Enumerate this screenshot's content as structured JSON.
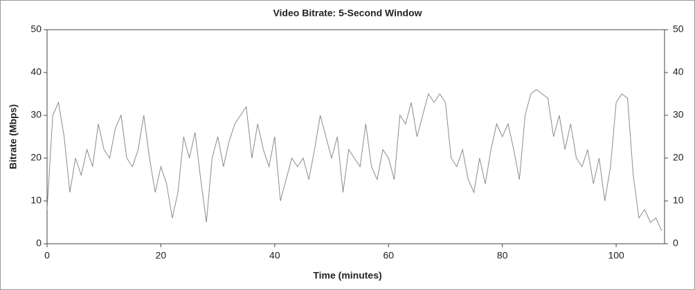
{
  "chart_data": {
    "type": "line",
    "title": "Video Bitrate: 5-Second Window",
    "x_label": "Time (minutes)",
    "y_label": "Bitrate (Mbps)",
    "x": [
      0,
      1,
      2,
      3,
      4,
      5,
      6,
      7,
      8,
      9,
      10,
      11,
      12,
      13,
      14,
      15,
      16,
      17,
      18,
      19,
      20,
      21,
      22,
      23,
      24,
      25,
      26,
      27,
      28,
      29,
      30,
      31,
      32,
      33,
      34,
      35,
      36,
      37,
      38,
      39,
      40,
      41,
      42,
      43,
      44,
      45,
      46,
      47,
      48,
      49,
      50,
      51,
      52,
      53,
      54,
      55,
      56,
      57,
      58,
      59,
      60,
      61,
      62,
      63,
      64,
      65,
      66,
      67,
      68,
      69,
      70,
      71,
      72,
      73,
      74,
      75,
      76,
      77,
      78,
      79,
      80,
      81,
      82,
      83,
      84,
      85,
      86,
      87,
      88,
      89,
      90,
      91,
      92,
      93,
      94,
      95,
      96,
      97,
      98,
      99,
      100,
      101,
      102,
      103,
      104,
      105,
      106,
      107,
      108
    ],
    "series": [
      {
        "name": "Bitrate",
        "color": "#8a8a8a",
        "values": [
          8,
          30,
          33,
          25,
          12,
          20,
          16,
          22,
          18,
          28,
          22,
          20,
          27,
          30,
          20,
          18,
          22,
          30,
          20,
          12,
          18,
          14,
          6,
          12,
          25,
          20,
          26,
          15,
          5,
          20,
          25,
          18,
          24,
          28,
          30,
          32,
          20,
          28,
          22,
          18,
          25,
          10,
          15,
          20,
          18,
          20,
          15,
          22,
          30,
          25,
          20,
          25,
          12,
          22,
          20,
          18,
          28,
          18,
          15,
          22,
          20,
          15,
          30,
          28,
          33,
          25,
          30,
          35,
          33,
          35,
          33,
          20,
          18,
          22,
          15,
          12,
          20,
          14,
          22,
          28,
          25,
          28,
          22,
          15,
          30,
          35,
          36,
          35,
          34,
          25,
          30,
          22,
          28,
          20,
          18,
          22,
          14,
          20,
          10,
          18,
          33,
          35,
          34,
          16,
          6,
          8,
          5,
          6,
          3
        ]
      }
    ],
    "xlim": [
      0,
      108.5
    ],
    "xticks": [
      0,
      20,
      40,
      60,
      80,
      100
    ],
    "ylim": [
      0,
      50
    ],
    "yticks": [
      0,
      10,
      20,
      30,
      40,
      50
    ],
    "y2lim": [
      0,
      50
    ],
    "y2ticks": [
      0,
      10,
      20,
      30,
      40,
      50
    ]
  }
}
